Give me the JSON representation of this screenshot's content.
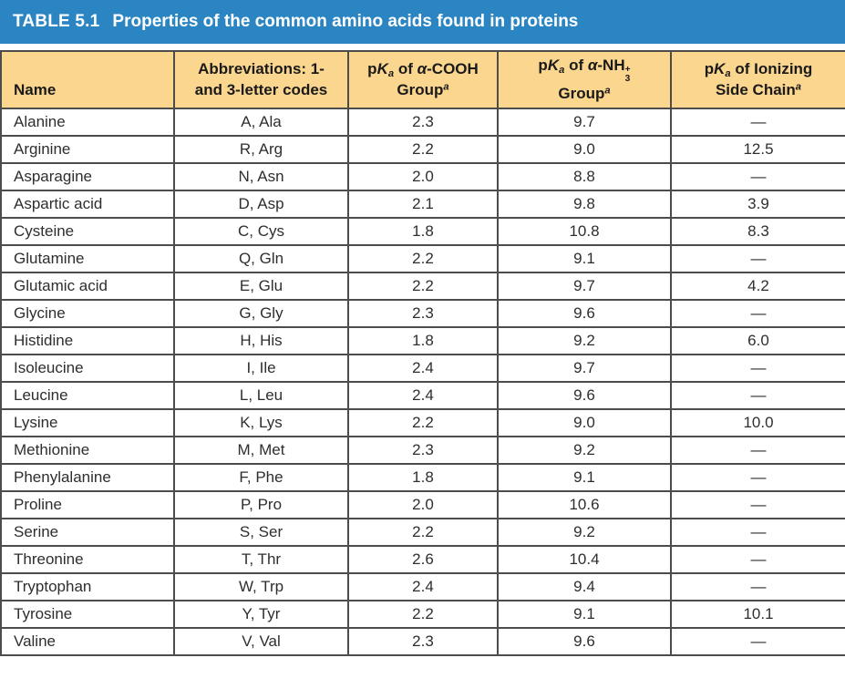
{
  "title_bar": {
    "label": "TABLE 5.1",
    "title": "Properties of the common amino acids found in proteins"
  },
  "table": {
    "columns": [
      {
        "id": "name",
        "align": "left",
        "tokens": [
          [
            "t",
            "Name"
          ]
        ]
      },
      {
        "id": "abbreviations",
        "align": "center",
        "tokens": [
          [
            "t",
            "Abbreviations: 1-"
          ],
          [
            "br"
          ],
          [
            "t",
            "and 3-letter codes"
          ]
        ]
      },
      {
        "id": "pka-cooh",
        "align": "center",
        "tokens": [
          [
            "t",
            "p"
          ],
          [
            "i",
            "K"
          ],
          [
            "sub",
            "a"
          ],
          [
            "t",
            " of "
          ],
          [
            "i",
            "α"
          ],
          [
            "t",
            "-COOH"
          ],
          [
            "br"
          ],
          [
            "t",
            "Group"
          ],
          [
            "sup",
            "a"
          ]
        ]
      },
      {
        "id": "pka-nh3",
        "align": "center",
        "tokens": [
          [
            "t",
            "p"
          ],
          [
            "i",
            "K"
          ],
          [
            "sub",
            "a"
          ],
          [
            "t",
            " of "
          ],
          [
            "i",
            "α"
          ],
          [
            "t",
            "-NH"
          ],
          [
            "stack",
            "3",
            "+"
          ],
          [
            "br"
          ],
          [
            "t",
            "Group"
          ],
          [
            "sup",
            "a"
          ]
        ]
      },
      {
        "id": "pka-side-chain",
        "align": "center",
        "tokens": [
          [
            "t",
            "p"
          ],
          [
            "i",
            "K"
          ],
          [
            "sub",
            "a"
          ],
          [
            "t",
            " of Ionizing"
          ],
          [
            "br"
          ],
          [
            "t",
            "Side Chain"
          ],
          [
            "sup",
            "a"
          ]
        ]
      }
    ],
    "rows": [
      [
        "Alanine",
        "A, Ala",
        "2.3",
        "9.7",
        "—"
      ],
      [
        "Arginine",
        "R, Arg",
        "2.2",
        "9.0",
        "12.5"
      ],
      [
        "Asparagine",
        "N, Asn",
        "2.0",
        "8.8",
        "—"
      ],
      [
        "Aspartic acid",
        "D, Asp",
        "2.1",
        "9.8",
        "3.9"
      ],
      [
        "Cysteine",
        "C, Cys",
        "1.8",
        "10.8",
        "8.3"
      ],
      [
        "Glutamine",
        "Q, Gln",
        "2.2",
        "9.1",
        "—"
      ],
      [
        "Glutamic acid",
        "E, Glu",
        "2.2",
        "9.7",
        "4.2"
      ],
      [
        "Glycine",
        "G, Gly",
        "2.3",
        "9.6",
        "—"
      ],
      [
        "Histidine",
        "H, His",
        "1.8",
        "9.2",
        "6.0"
      ],
      [
        "Isoleucine",
        "I, Ile",
        "2.4",
        "9.7",
        "—"
      ],
      [
        "Leucine",
        "L, Leu",
        "2.4",
        "9.6",
        "—"
      ],
      [
        "Lysine",
        "K, Lys",
        "2.2",
        "9.0",
        "10.0"
      ],
      [
        "Methionine",
        "M, Met",
        "2.3",
        "9.2",
        "—"
      ],
      [
        "Phenylalanine",
        "F, Phe",
        "1.8",
        "9.1",
        "—"
      ],
      [
        "Proline",
        "P, Pro",
        "2.0",
        "10.6",
        "—"
      ],
      [
        "Serine",
        "S, Ser",
        "2.2",
        "9.2",
        "—"
      ],
      [
        "Threonine",
        "T, Thr",
        "2.6",
        "10.4",
        "—"
      ],
      [
        "Tryptophan",
        "W, Trp",
        "2.4",
        "9.4",
        "—"
      ],
      [
        "Tyrosine",
        "Y, Tyr",
        "2.2",
        "9.1",
        "10.1"
      ],
      [
        "Valine",
        "V, Val",
        "2.3",
        "9.6",
        "—"
      ]
    ]
  },
  "colors": {
    "header_bar_blue": "#2C85C3",
    "column_header_tan": "#FBD68F",
    "border": "#4C4C4C"
  }
}
